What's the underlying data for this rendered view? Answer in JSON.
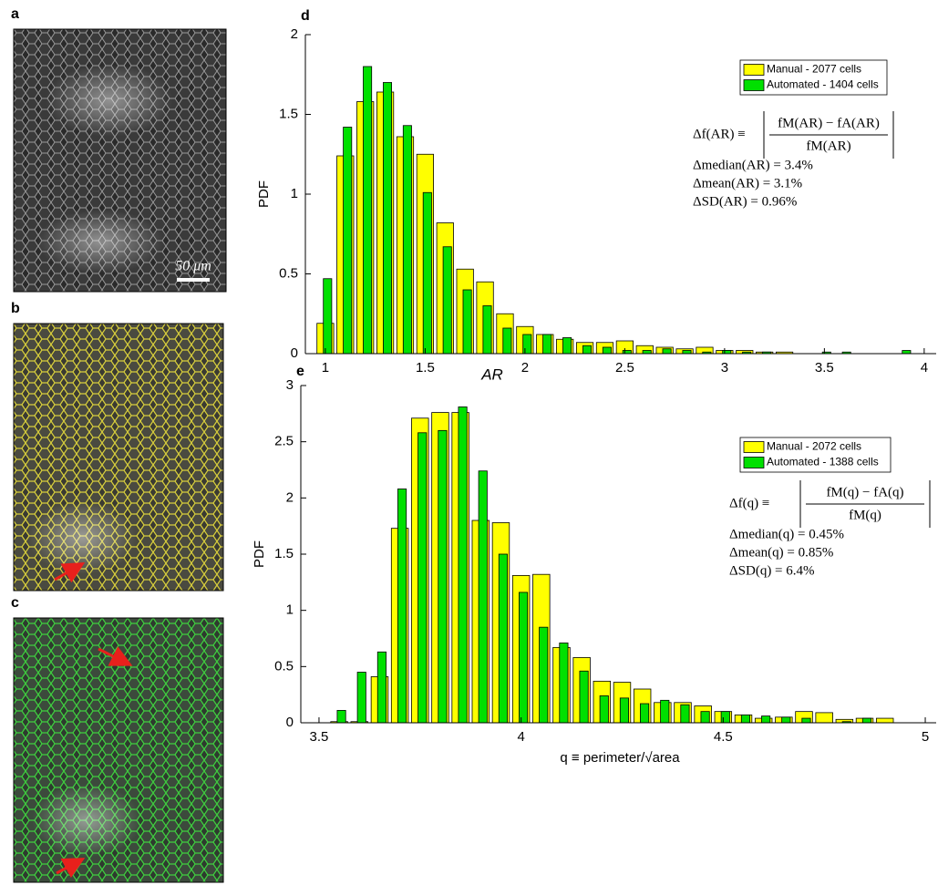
{
  "panel_labels": [
    "a",
    "b",
    "c"
  ],
  "scale_bar": "50 μm",
  "chart_data": [
    {
      "type": "bar",
      "panel": "d",
      "x_label": "AR",
      "y_label": "PDF",
      "x": [
        1.0,
        1.1,
        1.2,
        1.3,
        1.4,
        1.5,
        1.6,
        1.7,
        1.8,
        1.9,
        2.0,
        2.1,
        2.2,
        2.3,
        2.4,
        2.5,
        2.6,
        2.7,
        2.8,
        2.9,
        3.0,
        3.1,
        3.2,
        3.3,
        3.4,
        3.5,
        3.6,
        3.7,
        3.8,
        3.9
      ],
      "series": [
        {
          "name": "Manual - 2077 cells",
          "color": "#ffff00",
          "values": [
            0.19,
            1.24,
            1.58,
            1.64,
            1.36,
            1.25,
            0.82,
            0.53,
            0.45,
            0.25,
            0.17,
            0.12,
            0.09,
            0.07,
            0.07,
            0.08,
            0.05,
            0.04,
            0.03,
            0.04,
            0.02,
            0.02,
            0.01,
            0.01,
            0,
            0,
            0,
            0,
            0,
            0
          ]
        },
        {
          "name": "Automated - 1404 cells",
          "color": "#00e000",
          "values": [
            0.47,
            1.42,
            1.8,
            1.7,
            1.43,
            1.01,
            0.67,
            0.4,
            0.3,
            0.16,
            0.12,
            0.12,
            0.1,
            0.05,
            0.04,
            0.02,
            0.02,
            0.03,
            0.02,
            0.01,
            0.02,
            0.01,
            0.01,
            0,
            0,
            0.01,
            0.01,
            0,
            0,
            0.02
          ]
        }
      ],
      "xlim": [
        0.9,
        4.06
      ],
      "xticks": [
        1,
        1.5,
        2,
        2.5,
        3,
        3.5,
        4
      ],
      "ylim": [
        0,
        2
      ],
      "yticks": [
        0,
        0.5,
        1,
        1.5,
        2
      ],
      "legend": "upper right",
      "formula": {
        "lhs": "Δf(AR) ≡",
        "numerator": "fM(AR) − fA(AR)",
        "denominator": "fM(AR)"
      },
      "stats": [
        "Δmedian(AR) = 3.4%",
        "Δmean(AR) = 3.1%",
        "ΔSD(AR) = 0.96%"
      ]
    },
    {
      "type": "bar",
      "panel": "e",
      "x_label": "q ≡ perimeter/√area",
      "y_label": "PDF",
      "x": [
        3.55,
        3.6,
        3.65,
        3.7,
        3.75,
        3.8,
        3.85,
        3.9,
        3.95,
        4.0,
        4.05,
        4.1,
        4.15,
        4.2,
        4.25,
        4.3,
        4.35,
        4.4,
        4.45,
        4.5,
        4.55,
        4.6,
        4.65,
        4.7,
        4.75,
        4.8,
        4.85,
        4.9
      ],
      "series": [
        {
          "name": "Manual - 2072 cells",
          "color": "#ffff00",
          "values": [
            0.01,
            0.01,
            0.41,
            1.73,
            2.71,
            2.76,
            2.76,
            1.8,
            1.78,
            1.31,
            1.32,
            0.67,
            0.58,
            0.37,
            0.36,
            0.3,
            0.18,
            0.18,
            0.15,
            0.1,
            0.07,
            0.04,
            0.05,
            0.1,
            0.09,
            0.03,
            0.04,
            0.04
          ]
        },
        {
          "name": "Automated - 1388 cells",
          "color": "#00e000",
          "values": [
            0.11,
            0.45,
            0.63,
            2.08,
            2.58,
            2.6,
            2.81,
            2.24,
            1.5,
            1.16,
            0.85,
            0.71,
            0.46,
            0.24,
            0.22,
            0.17,
            0.2,
            0.16,
            0.1,
            0.1,
            0.07,
            0.06,
            0.05,
            0.04,
            0,
            0.01,
            0.04,
            0
          ]
        }
      ],
      "xlim": [
        3.455,
        5.027
      ],
      "xticks": [
        3.5,
        4,
        4.5,
        5
      ],
      "ylim": [
        0,
        3
      ],
      "yticks": [
        0,
        0.5,
        1,
        1.5,
        2,
        2.5,
        3
      ],
      "legend": "upper right",
      "formula": {
        "lhs": "Δf(q) ≡",
        "numerator": "fM(q) − fA(q)",
        "denominator": "fM(q)"
      },
      "stats": [
        "Δmedian(q) = 0.45%",
        "Δmean(q) = 0.85%",
        "ΔSD(q) = 6.4%"
      ]
    }
  ]
}
